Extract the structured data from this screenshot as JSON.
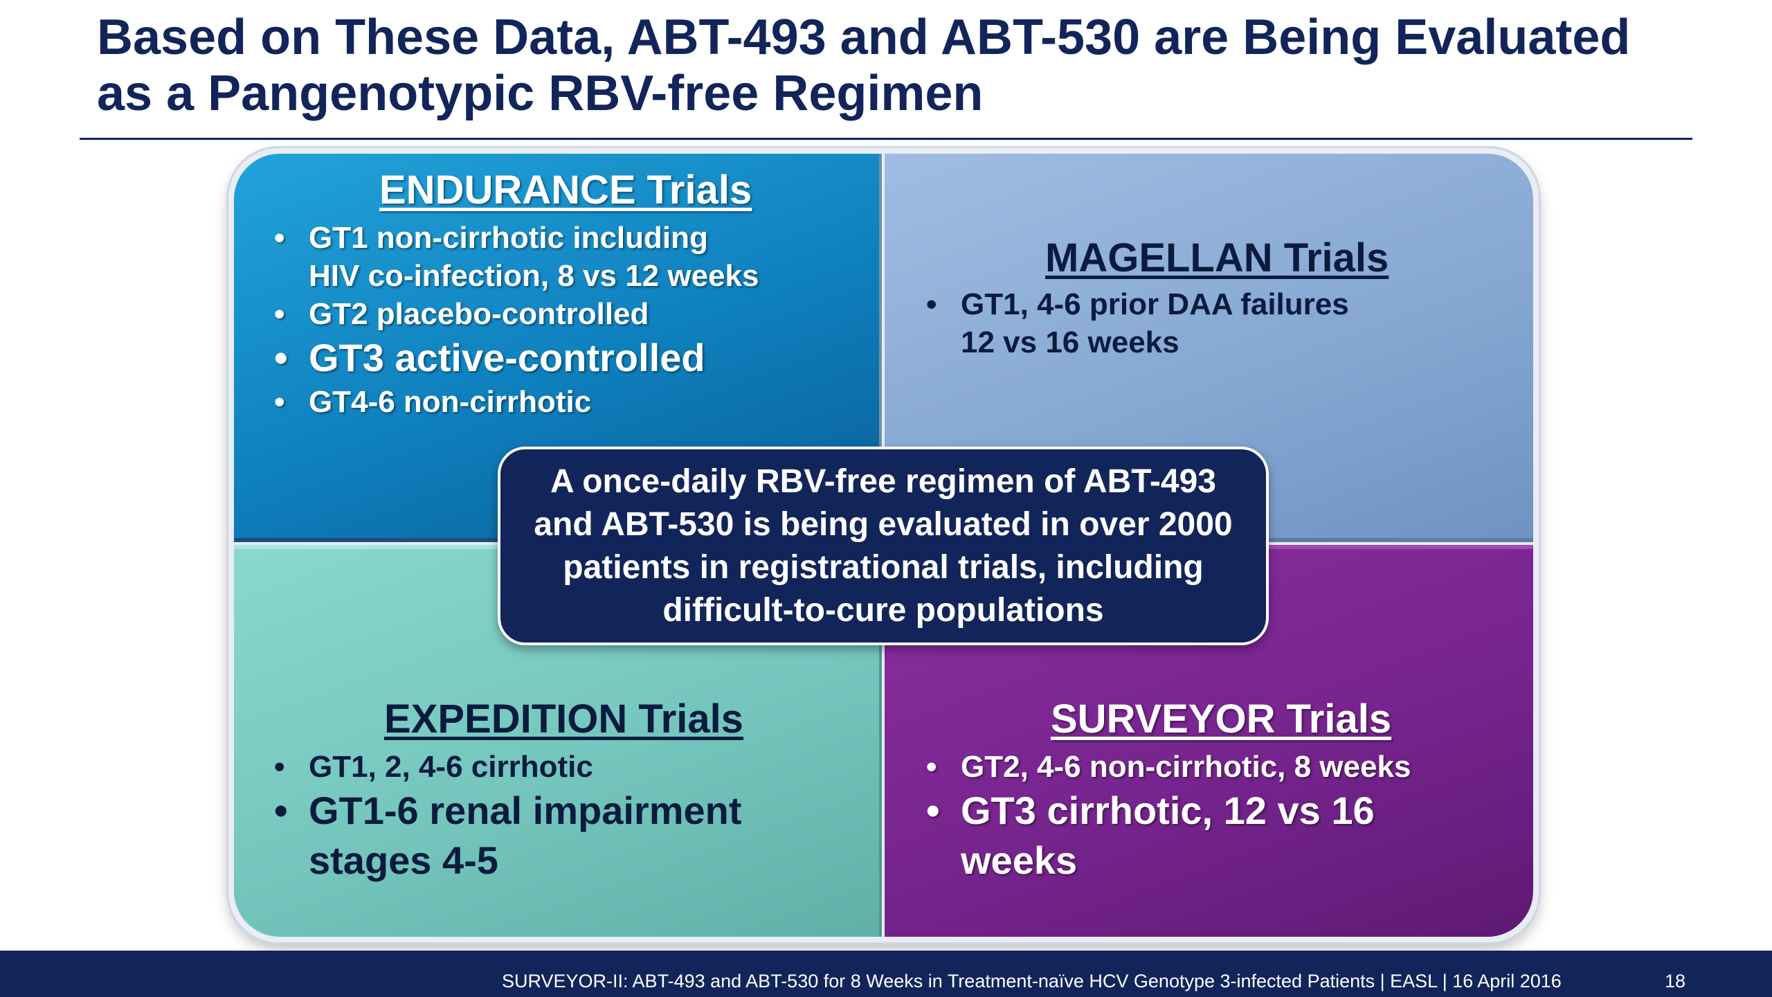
{
  "slide": {
    "title_lines": [
      "Based on These Data, ABT-493 and ABT-530 are Being Evaluated",
      "as a Pangenotypic RBV-free Regimen"
    ]
  },
  "quadrants": {
    "endurance": {
      "heading": "ENDURANCE Trials",
      "bullets": [
        {
          "lines": [
            "GT1 non-cirrhotic including",
            "HIV co-infection, 8 vs 12 weeks"
          ]
        },
        {
          "lines": [
            "GT2 placebo-controlled"
          ]
        },
        {
          "lines": [
            "GT3 active-controlled"
          ]
        },
        {
          "lines": [
            "GT4-6 non-cirrhotic"
          ]
        }
      ]
    },
    "magellan": {
      "heading": "MAGELLAN Trials",
      "bullets": [
        {
          "lines": [
            "GT1, 4-6 prior DAA failures",
            "12 vs 16 weeks"
          ]
        }
      ]
    },
    "expedition": {
      "heading": "EXPEDITION Trials",
      "bullets": [
        {
          "lines": [
            "GT1, 2, 4-6 cirrhotic"
          ]
        },
        {
          "lines": [
            "GT1-6 renal impairment",
            "stages 4-5"
          ]
        }
      ]
    },
    "surveyor": {
      "heading": "SURVEYOR Trials",
      "bullets": [
        {
          "lines": [
            "GT2, 4-6 non-cirrhotic, 8 weeks"
          ]
        },
        {
          "lines": [
            "GT3 cirrhotic, 12 vs 16",
            "weeks"
          ]
        }
      ]
    }
  },
  "center": {
    "lines": [
      "A once-daily RBV-free regimen of ABT-493",
      "and ABT-530 is being evaluated in over 2000",
      "patients in registrational trials, including",
      "difficult-to-cure populations"
    ]
  },
  "footer": {
    "text": "SURVEYOR-II: ABT-493 and ABT-530 for 8 Weeks in Treatment-naïve HCV Genotype 3-infected Patients  | EASL | 16 April 2016",
    "page_number": "18"
  },
  "bullet_glyph": "•",
  "colors": {
    "navy": "#12255a",
    "endurance_blue": "#0e7fbd",
    "magellan_blue": "#84a6d1",
    "expedition_teal": "#72c4bb",
    "surveyor_purple": "#76248e"
  }
}
